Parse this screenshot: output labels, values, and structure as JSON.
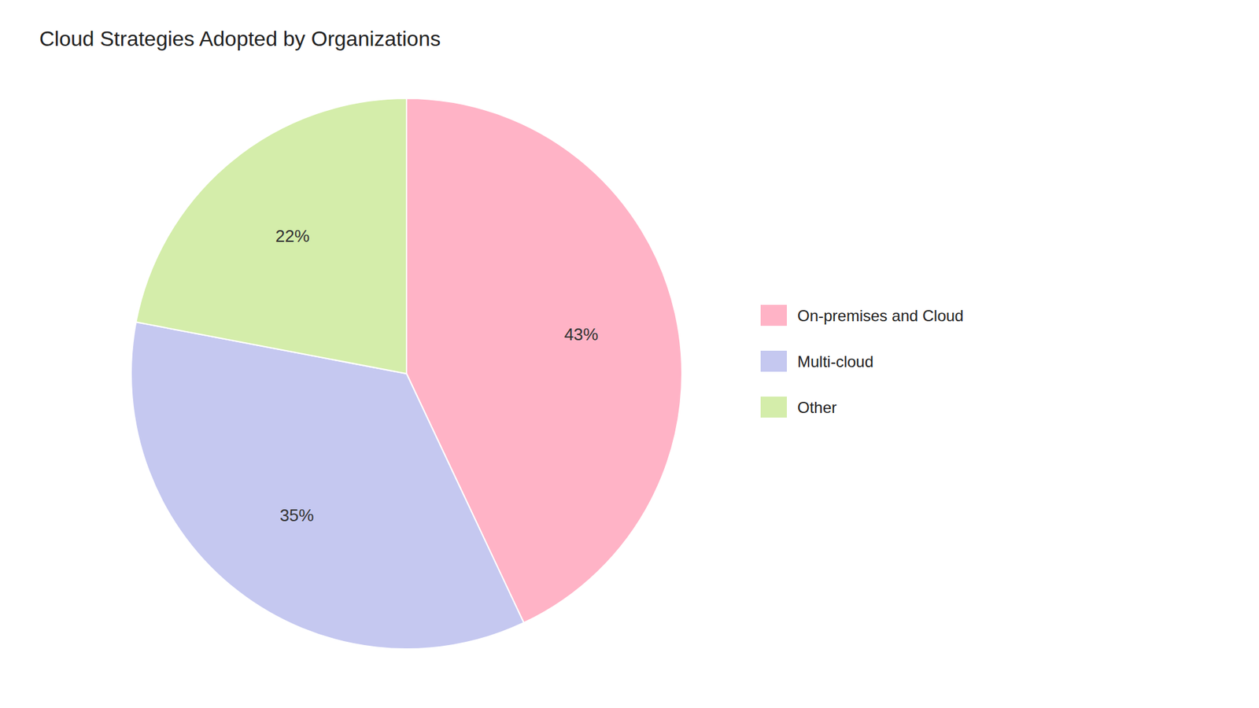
{
  "chart_data": {
    "type": "pie",
    "title": "Cloud Strategies Adopted by Organizations",
    "categories": [
      "On-premises and Cloud",
      "Multi-cloud",
      "Other"
    ],
    "values": [
      43,
      35,
      22
    ],
    "value_labels": [
      "43%",
      "35%",
      "22%"
    ],
    "colors": [
      "#FFB3C6",
      "#C5C8F0",
      "#D4EDAA"
    ],
    "data_labels": true,
    "legend": "right"
  }
}
